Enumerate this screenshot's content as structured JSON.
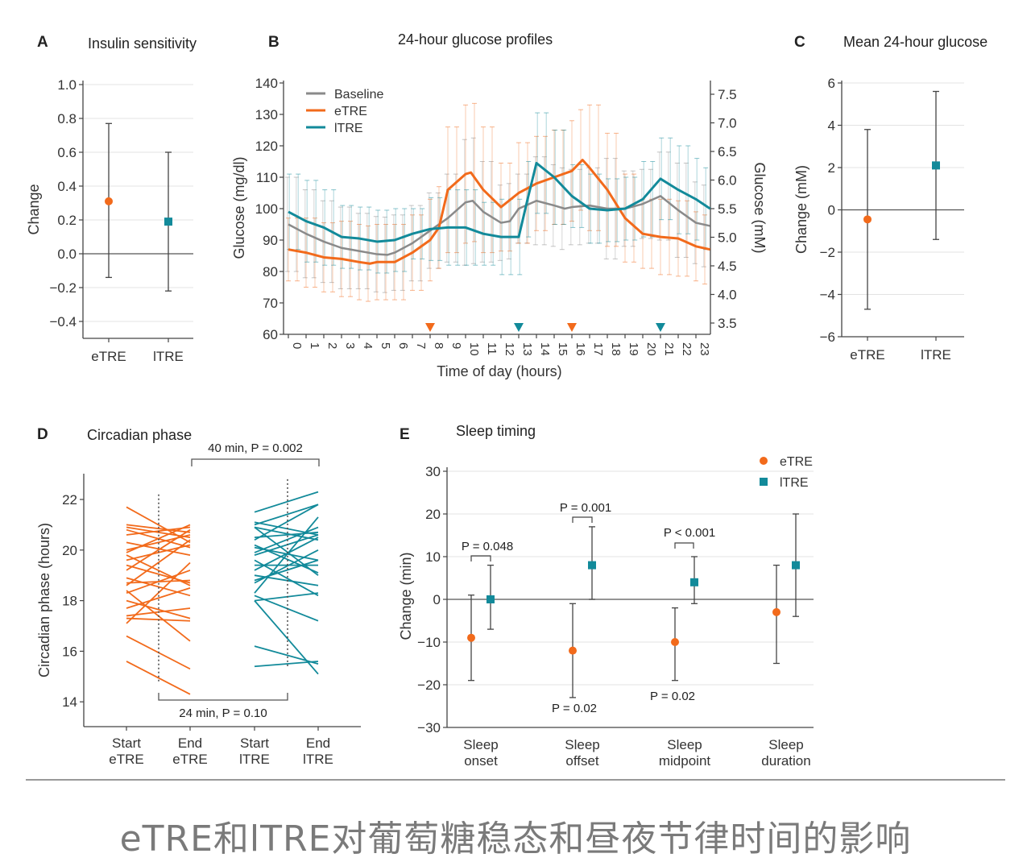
{
  "caption": "eTRE和lTRE对葡萄糖稳态和昼夜节律时间的影响",
  "colors": {
    "eTRE": "#f26a1b",
    "lTRE": "#128a9a",
    "baseline": "#8a8a8a",
    "grid": "#e3e3e3",
    "axis": "#444444"
  },
  "chart_data": [
    {
      "panel": "A",
      "type": "scatter",
      "title": "Insulin sensitivity",
      "ylabel": "Change",
      "ylim": [
        -0.4,
        1.0
      ],
      "yticks": [
        "1.0",
        "0.8",
        "0.6",
        "0.4",
        "0.2",
        "0.0",
        "−0.2",
        "−0.4"
      ],
      "yticks_values": [
        1.0,
        0.8,
        0.6,
        0.4,
        0.2,
        0.0,
        -0.2,
        -0.4
      ],
      "categories": [
        "eTRE",
        "lTRE"
      ],
      "grid": true,
      "points": [
        {
          "group": "eTRE",
          "mean": 0.31,
          "low": -0.14,
          "high": 0.77,
          "marker": "circle"
        },
        {
          "group": "lTRE",
          "mean": 0.19,
          "low": -0.22,
          "high": 0.6,
          "marker": "square"
        }
      ]
    },
    {
      "panel": "B",
      "type": "line",
      "title": "24-hour glucose profiles",
      "xlabel": "Time of day (hours)",
      "ylabel": "Glucose (mg/dl)",
      "ylabel_right": "Glucose (mM)",
      "ylim": [
        60,
        140
      ],
      "yticks": [
        60,
        70,
        80,
        90,
        100,
        110,
        120,
        130,
        140
      ],
      "yticks_right": [
        "3.5",
        "4.0",
        "4.5",
        "5.0",
        "5.5",
        "6.0",
        "6.5",
        "7.0",
        "7.5"
      ],
      "xticks": [
        "0",
        "1",
        "2",
        "3",
        "4",
        "5",
        "6",
        "7",
        "8",
        "9",
        "10",
        "11",
        "12",
        "13",
        "14",
        "15",
        "16",
        "17",
        "18",
        "19",
        "20",
        "21",
        "22",
        "23"
      ],
      "legend_position": "top-left",
      "series": [
        {
          "name": "Baseline",
          "key": "baseline",
          "points": [
            [
              0,
              95
            ],
            [
              1,
              92
            ],
            [
              2,
              89.5
            ],
            [
              3,
              87.5
            ],
            [
              4,
              86.5
            ],
            [
              5,
              85.5
            ],
            [
              5.6,
              85.3
            ],
            [
              6,
              86
            ],
            [
              7,
              89
            ],
            [
              8,
              93
            ],
            [
              9,
              97
            ],
            [
              10,
              102
            ],
            [
              10.4,
              102.5
            ],
            [
              11,
              99
            ],
            [
              12,
              95.5
            ],
            [
              12.5,
              96
            ],
            [
              13,
              100
            ],
            [
              14,
              102.5
            ],
            [
              15,
              101
            ],
            [
              15.6,
              100
            ],
            [
              16,
              100.5
            ],
            [
              17,
              101
            ],
            [
              18,
              100
            ],
            [
              19,
              100
            ],
            [
              20,
              101.5
            ],
            [
              21,
              104
            ],
            [
              22,
              99.5
            ],
            [
              23,
              95.5
            ],
            [
              23.8,
              94.5
            ]
          ],
          "sd": [
            15,
            14,
            13,
            13,
            12,
            12,
            12,
            12,
            12,
            14,
            20,
            16,
            12,
            11,
            14,
            13,
            12,
            12,
            16,
            12,
            11,
            14,
            15,
            13
          ]
        },
        {
          "name": "eTRE",
          "key": "eTRE",
          "points": [
            [
              0,
              87
            ],
            [
              1,
              86
            ],
            [
              2,
              84.5
            ],
            [
              3,
              84
            ],
            [
              4,
              83
            ],
            [
              4.6,
              82.5
            ],
            [
              5,
              83
            ],
            [
              6,
              83
            ],
            [
              7,
              86
            ],
            [
              8,
              90
            ],
            [
              8.5,
              94
            ],
            [
              9,
              106
            ],
            [
              10,
              111
            ],
            [
              10.3,
              111.5
            ],
            [
              11,
              106
            ],
            [
              12,
              100.5
            ],
            [
              13,
              105
            ],
            [
              14,
              108
            ],
            [
              15,
              110
            ],
            [
              16,
              112
            ],
            [
              16.6,
              115.5
            ],
            [
              17,
              113
            ],
            [
              18,
              106
            ],
            [
              19,
              97
            ],
            [
              20,
              92
            ],
            [
              21,
              91
            ],
            [
              22,
              90.5
            ],
            [
              23,
              88
            ],
            [
              23.8,
              87
            ]
          ],
          "sd": [
            10,
            11,
            11,
            12,
            12,
            12,
            12,
            12,
            13,
            20,
            22,
            20,
            14,
            16,
            15,
            15,
            16,
            20,
            18,
            14,
            11,
            12,
            12,
            11
          ]
        },
        {
          "name": "lTRE",
          "key": "lTRE",
          "points": [
            [
              0,
              99
            ],
            [
              1,
              96
            ],
            [
              2,
              94
            ],
            [
              3,
              91
            ],
            [
              4,
              90.5
            ],
            [
              5,
              89.5
            ],
            [
              6,
              90
            ],
            [
              7,
              92
            ],
            [
              8,
              93.5
            ],
            [
              9,
              94
            ],
            [
              10,
              94
            ],
            [
              11,
              92
            ],
            [
              12,
              91
            ],
            [
              13,
              91
            ],
            [
              13.5,
              103
            ],
            [
              14,
              114.5
            ],
            [
              15,
              110
            ],
            [
              16,
              104
            ],
            [
              17,
              100
            ],
            [
              18,
              99.5
            ],
            [
              19,
              100
            ],
            [
              20,
              103
            ],
            [
              21,
              109.5
            ],
            [
              22,
              106
            ],
            [
              23,
              103
            ],
            [
              23.8,
              100
            ]
          ],
          "sd": [
            12,
            13,
            12,
            10,
            10,
            10,
            10,
            8,
            10,
            12,
            12,
            10,
            12,
            12,
            16,
            15,
            10,
            11,
            10,
            10,
            12,
            13,
            14,
            13
          ]
        }
      ],
      "meal_markers": [
        {
          "group": "eTRE",
          "hour": 8
        },
        {
          "group": "lTRE",
          "hour": 13
        },
        {
          "group": "eTRE",
          "hour": 16
        },
        {
          "group": "lTRE",
          "hour": 21
        }
      ]
    },
    {
      "panel": "C",
      "type": "scatter",
      "title": "Mean 24-hour glucose",
      "ylabel": "Change (mM)",
      "ylim": [
        -6,
        6
      ],
      "yticks": [
        "6",
        "4",
        "2",
        "0",
        "−2",
        "−4",
        "−6"
      ],
      "yticks_values": [
        6,
        4,
        2,
        0,
        -2,
        -4,
        -6
      ],
      "categories": [
        "eTRE",
        "lTRE"
      ],
      "grid": true,
      "points": [
        {
          "group": "eTRE",
          "mean": -0.45,
          "low": -4.7,
          "high": 3.8,
          "marker": "circle"
        },
        {
          "group": "lTRE",
          "mean": 2.1,
          "low": -1.4,
          "high": 5.6,
          "marker": "square"
        }
      ]
    },
    {
      "panel": "D",
      "type": "line",
      "title": "Circadian phase",
      "ylabel": "Circadian phase (hours)",
      "ylim": [
        14,
        22
      ],
      "yticks": [
        14,
        16,
        18,
        20,
        22
      ],
      "categories": [
        "Start\neTRE",
        "End\neTRE",
        "Start\nlTRE",
        "End\nlTRE"
      ],
      "eTRE_pairs": [
        [
          21.7,
          20.3
        ],
        [
          21.0,
          20.7
        ],
        [
          20.9,
          20.5
        ],
        [
          20.8,
          20.1
        ],
        [
          20.6,
          20.9
        ],
        [
          20.3,
          19.8
        ],
        [
          20.0,
          20.6
        ],
        [
          19.9,
          21.0
        ],
        [
          19.6,
          20.2
        ],
        [
          19.4,
          18.7
        ],
        [
          19.2,
          20.8
        ],
        [
          18.9,
          18.2
        ],
        [
          18.7,
          18.8
        ],
        [
          18.6,
          20.4
        ],
        [
          18.3,
          19.2
        ],
        [
          18.0,
          17.3
        ],
        [
          17.7,
          18.5
        ],
        [
          17.4,
          17.7
        ],
        [
          17.3,
          17.2
        ],
        [
          17.1,
          19.5
        ],
        [
          16.6,
          15.3
        ],
        [
          15.6,
          14.3
        ],
        [
          18.4,
          16.4
        ],
        [
          19.8,
          18.6
        ]
      ],
      "lTRE_pairs": [
        [
          21.5,
          22.3
        ],
        [
          21.1,
          20.6
        ],
        [
          21.0,
          21.8
        ],
        [
          20.9,
          19.0
        ],
        [
          20.9,
          20.4
        ],
        [
          20.4,
          21.8
        ],
        [
          20.1,
          19.6
        ],
        [
          19.9,
          20.9
        ],
        [
          19.8,
          20.6
        ],
        [
          19.6,
          18.2
        ],
        [
          19.2,
          20.5
        ],
        [
          19.0,
          18.6
        ],
        [
          18.7,
          20.0
        ],
        [
          18.3,
          21.3
        ],
        [
          18.2,
          17.2
        ],
        [
          18.0,
          15.1
        ],
        [
          18.0,
          18.3
        ],
        [
          16.2,
          15.5
        ],
        [
          15.4,
          15.6
        ],
        [
          19.4,
          19.4
        ],
        [
          20.5,
          20.7
        ],
        [
          18.8,
          19.6
        ],
        [
          20.2,
          19.1
        ]
      ],
      "annotations": {
        "top": "40 min, P = 0.002",
        "bottom": "24 min, P = 0.10"
      }
    },
    {
      "panel": "E",
      "type": "scatter",
      "title": "Sleep timing",
      "ylabel": "Change (min)",
      "ylim": [
        -30,
        30
      ],
      "yticks": [
        "30",
        "20",
        "10",
        "0",
        "−10",
        "−20",
        "−30"
      ],
      "yticks_values": [
        30,
        20,
        10,
        0,
        -10,
        -20,
        -30
      ],
      "categories": [
        "Sleep\nonset",
        "Sleep\noffset",
        "Sleep\nmidpoint",
        "Sleep\nduration"
      ],
      "legend": [
        "eTRE",
        "lTRE"
      ],
      "legend_position": "top-right",
      "series": [
        {
          "name": "eTRE",
          "values": [
            {
              "mean": -9,
              "low": -19,
              "high": 1
            },
            {
              "mean": -12,
              "low": -23,
              "high": -1
            },
            {
              "mean": -10,
              "low": -19,
              "high": -2
            },
            {
              "mean": -3,
              "low": -15,
              "high": 8
            }
          ]
        },
        {
          "name": "lTRE",
          "values": [
            {
              "mean": 0,
              "low": -7,
              "high": 8
            },
            {
              "mean": 8,
              "low": 0,
              "high": 17
            },
            {
              "mean": 4,
              "low": -1,
              "high": 10
            },
            {
              "mean": 8,
              "low": -4,
              "high": 20
            }
          ]
        }
      ],
      "annotations": {
        "onset_between": "P = 0.048",
        "offset_between": "P = 0.001",
        "offset_etre": "P = 0.02",
        "midpoint_between": "P < 0.001",
        "midpoint_etre": "P = 0.02"
      }
    }
  ],
  "panel_letters": [
    "A",
    "B",
    "C",
    "D",
    "E"
  ]
}
